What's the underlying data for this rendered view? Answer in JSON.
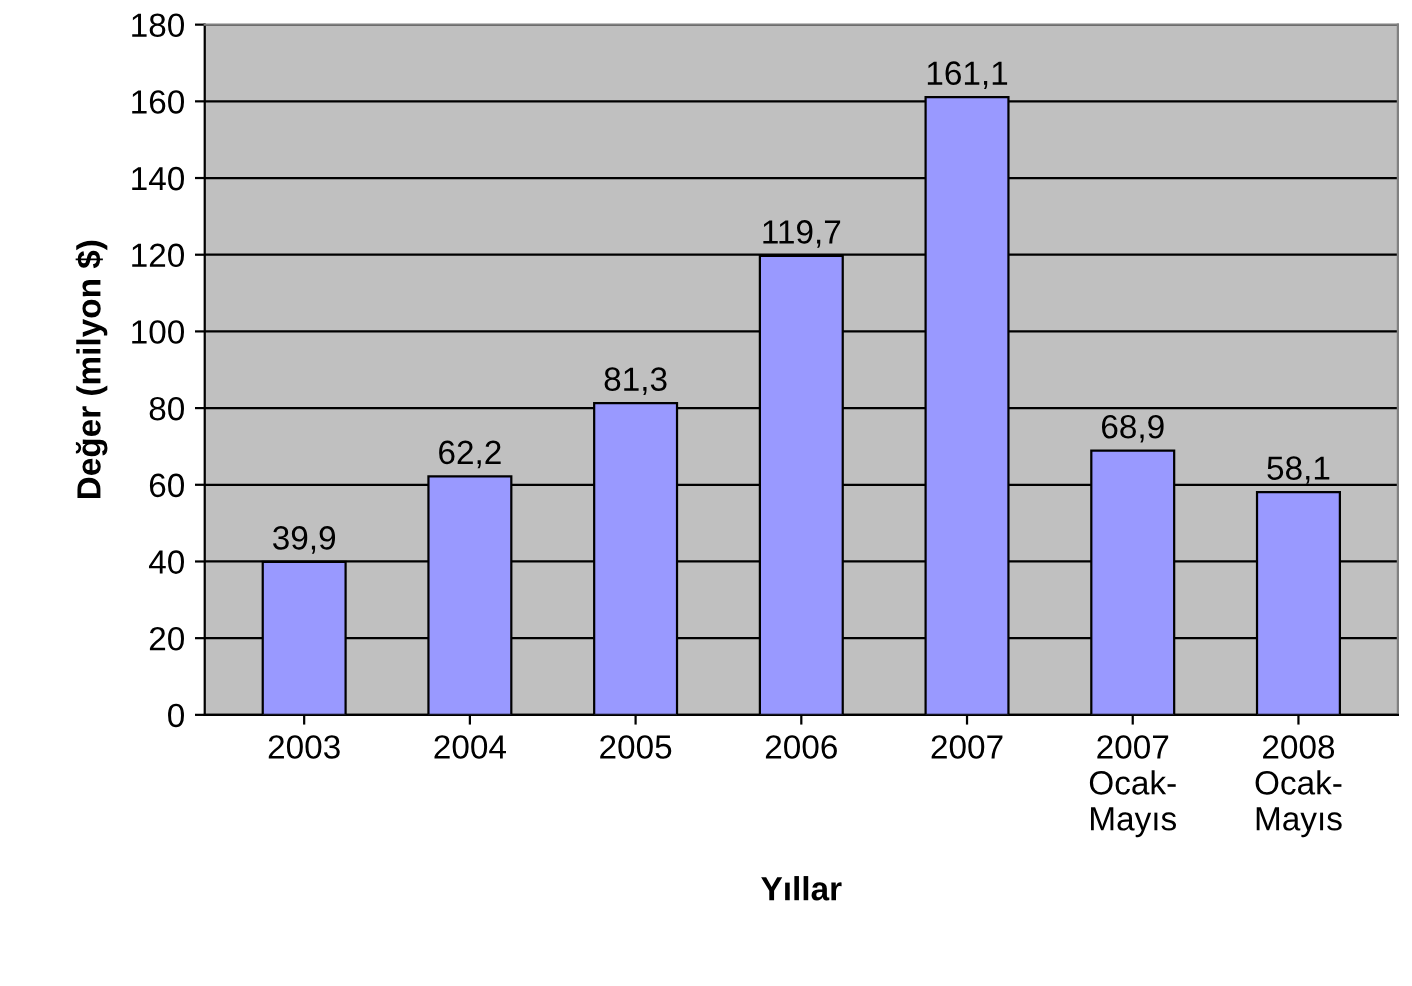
{
  "chart_data": {
    "type": "bar",
    "xlabel": "Yıllar",
    "ylabel": "Değer (milyon $)",
    "categories": [
      "2003",
      "2004",
      "2005",
      "2006",
      "2007",
      "2007\nOcak-\nMayıs",
      "2008\nOcak-\nMayıs"
    ],
    "values": [
      39.9,
      62.2,
      81.3,
      119.7,
      161.1,
      68.9,
      58.1
    ],
    "value_labels": [
      "39,9",
      "62,2",
      "81,3",
      "119,7",
      "161,1",
      "68,9",
      "58,1"
    ],
    "color": "#9999ff",
    "ylim": [
      0,
      180
    ],
    "yticks": [
      0,
      20,
      40,
      60,
      80,
      100,
      120,
      140,
      160,
      180
    ],
    "grid": "y"
  }
}
